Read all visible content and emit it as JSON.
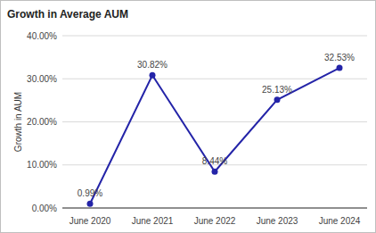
{
  "chart_data": {
    "type": "line",
    "title": "Growth in Average AUM",
    "y_label": "Growth in AUM",
    "categories": [
      "June 2020",
      "June 2021",
      "June 2022",
      "June 2023",
      "June 2024"
    ],
    "values": [
      0.99,
      30.82,
      8.44,
      25.13,
      32.53
    ],
    "value_labels": [
      "0.99%",
      "30.82%",
      "8.44%",
      "25.13%",
      "32.53%"
    ],
    "color": "#2424a8",
    "marker": "circle",
    "line_style": "solid",
    "ylim": [
      0,
      40
    ],
    "yticks": [
      {
        "value": 0,
        "label": "0.00%"
      },
      {
        "value": 10,
        "label": "10.00%"
      },
      {
        "value": 20,
        "label": "20.00%"
      },
      {
        "value": 30,
        "label": "30.00%"
      },
      {
        "value": 40,
        "label": "40.00%"
      }
    ],
    "grid": true,
    "data_labels": true
  }
}
